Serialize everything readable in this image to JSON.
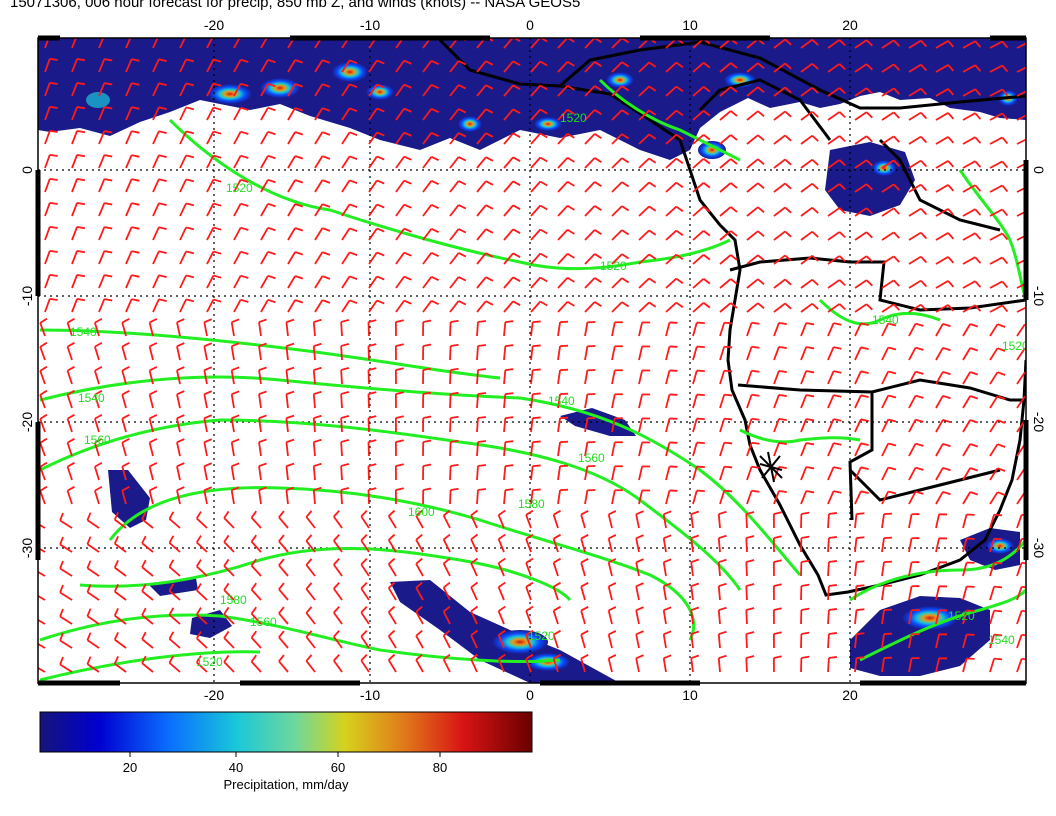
{
  "title": "15071306, 006 hour forecast for precip, 850 mb Z, and winds (knots) -- NASA GEOS5",
  "map": {
    "lon_min": -31,
    "lon_max": 31,
    "lat_min": -40,
    "lat_max": 10,
    "lon_ticks": [
      "-20",
      "-10",
      "0",
      "10",
      "20"
    ],
    "lat_ticks": [
      "0",
      "-10",
      "-20",
      "-30"
    ],
    "contour_labels": [
      "1520",
      "1520",
      "1520",
      "1540",
      "1540",
      "1540",
      "1540",
      "1560",
      "1560",
      "1580",
      "1600",
      "1580",
      "1560",
      "1520",
      "1520",
      "1540",
      "1520",
      "1520"
    ],
    "colors": {
      "contour": "#22ee22",
      "wind_barb": "#ff1a1a",
      "coastline": "#000000",
      "gridlines": "#000000"
    }
  },
  "colorbar": {
    "ticks": [
      "20",
      "40",
      "60",
      "80"
    ],
    "label": "Precipitation, mm/day",
    "stops": [
      "#1a1a7a",
      "#0000d0",
      "#0a6cff",
      "#19c8d8",
      "#6fd89a",
      "#d6d21c",
      "#e07a1a",
      "#d81414",
      "#7a0000"
    ]
  }
}
